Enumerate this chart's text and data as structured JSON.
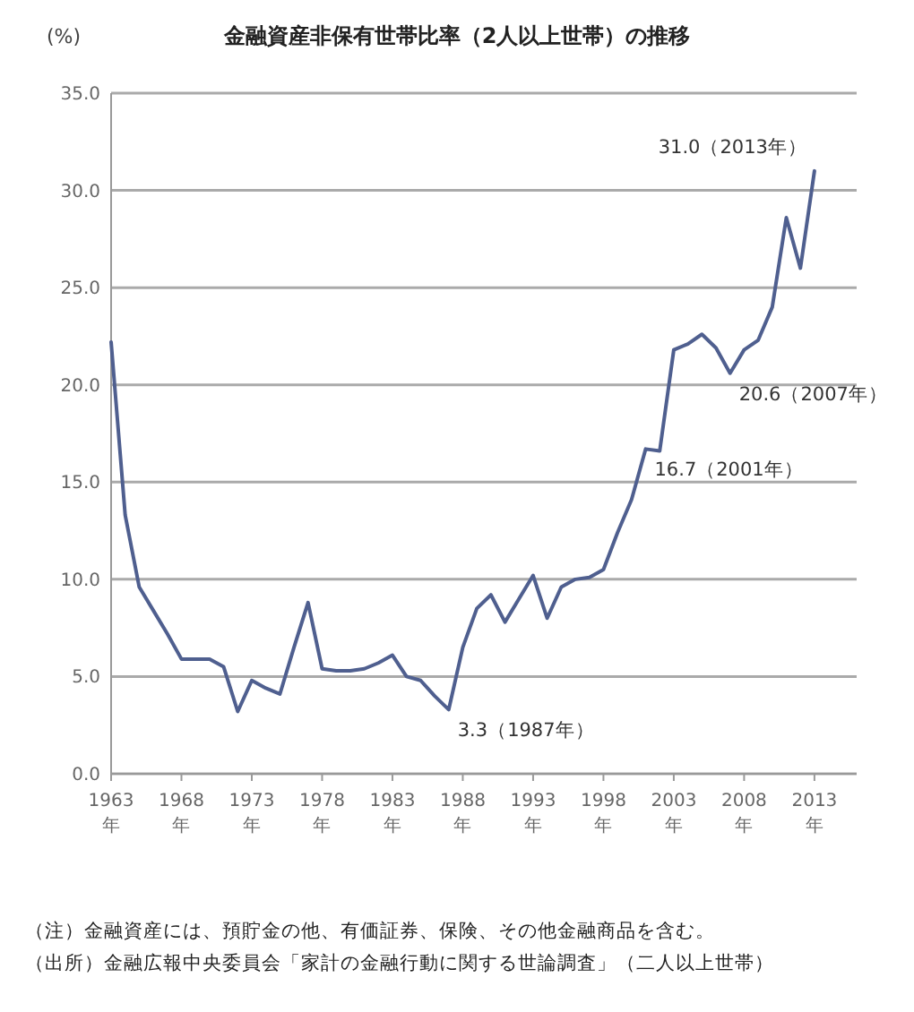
{
  "chart_data": {
    "type": "line",
    "title": "金融資産非保有世帯比率（2人以上世帯）の推移",
    "ylabel": "(%)",
    "x": [
      1963,
      1964,
      1965,
      1966,
      1967,
      1968,
      1969,
      1970,
      1971,
      1972,
      1973,
      1974,
      1975,
      1976,
      1977,
      1978,
      1979,
      1980,
      1981,
      1982,
      1983,
      1984,
      1985,
      1986,
      1987,
      1988,
      1989,
      1990,
      1991,
      1992,
      1993,
      1994,
      1995,
      1996,
      1997,
      1998,
      1999,
      2000,
      2001,
      2002,
      2003,
      2004,
      2005,
      2006,
      2007,
      2008,
      2009,
      2010,
      2011,
      2012,
      2013
    ],
    "series": [
      {
        "color": "#4f5f8f",
        "values": [
          22.2,
          13.3,
          9.6,
          8.4,
          7.2,
          5.9,
          5.9,
          5.9,
          5.5,
          3.2,
          4.8,
          4.4,
          4.1,
          6.5,
          8.8,
          5.4,
          5.3,
          5.3,
          5.4,
          5.7,
          6.1,
          5.0,
          4.8,
          4.0,
          3.3,
          6.5,
          8.5,
          9.2,
          7.8,
          9.0,
          10.2,
          8.0,
          9.6,
          10.0,
          10.1,
          10.5,
          12.4,
          14.1,
          16.7,
          16.6,
          21.8,
          22.1,
          22.6,
          21.9,
          20.6,
          21.8,
          22.3,
          24.0,
          28.6,
          26.0,
          31.0
        ]
      }
    ],
    "xlim": [
      1963,
      2016
    ],
    "xticks": [
      {
        "value": 1963,
        "label": "1963\n年"
      },
      {
        "value": 1968,
        "label": "1968\n年"
      },
      {
        "value": 1973,
        "label": "1973\n年"
      },
      {
        "value": 1978,
        "label": "1978\n年"
      },
      {
        "value": 1983,
        "label": "1983\n年"
      },
      {
        "value": 1988,
        "label": "1988\n年"
      },
      {
        "value": 1993,
        "label": "1993\n年"
      },
      {
        "value": 1998,
        "label": "1998\n年"
      },
      {
        "value": 2003,
        "label": "2003\n年"
      },
      {
        "value": 2008,
        "label": "2008\n年"
      },
      {
        "value": 2013,
        "label": "2013\n年"
      }
    ],
    "ylim": [
      0,
      35
    ],
    "yticks": [
      {
        "value": 0,
        "label": "0.0"
      },
      {
        "value": 5,
        "label": "5.0"
      },
      {
        "value": 10,
        "label": "10.0"
      },
      {
        "value": 15,
        "label": "15.0"
      },
      {
        "value": 20,
        "label": "20.0"
      },
      {
        "value": 25,
        "label": "25.0"
      },
      {
        "value": 30,
        "label": "30.0"
      },
      {
        "value": 35,
        "label": "35.0"
      }
    ],
    "grid": "y",
    "marker": "none",
    "line_style": "solid",
    "annotations": [
      {
        "text": "31.0（2013年）",
        "x": 2013,
        "y": 31.0
      },
      {
        "text": "20.6（2007年）",
        "x": 2007,
        "y": 20.6
      },
      {
        "text": "16.7（2001年）",
        "x": 2001,
        "y": 16.7
      },
      {
        "text": "3.3（1987年）",
        "x": 1987,
        "y": 3.3
      },
      "（注）金融資産には、預貯金の他、有価証券、保険、その他金融商品を含む。",
      "（出所）金融広報中央委員会「家計の金融行動に関する世論調査」（二人以上世帯）"
    ]
  }
}
